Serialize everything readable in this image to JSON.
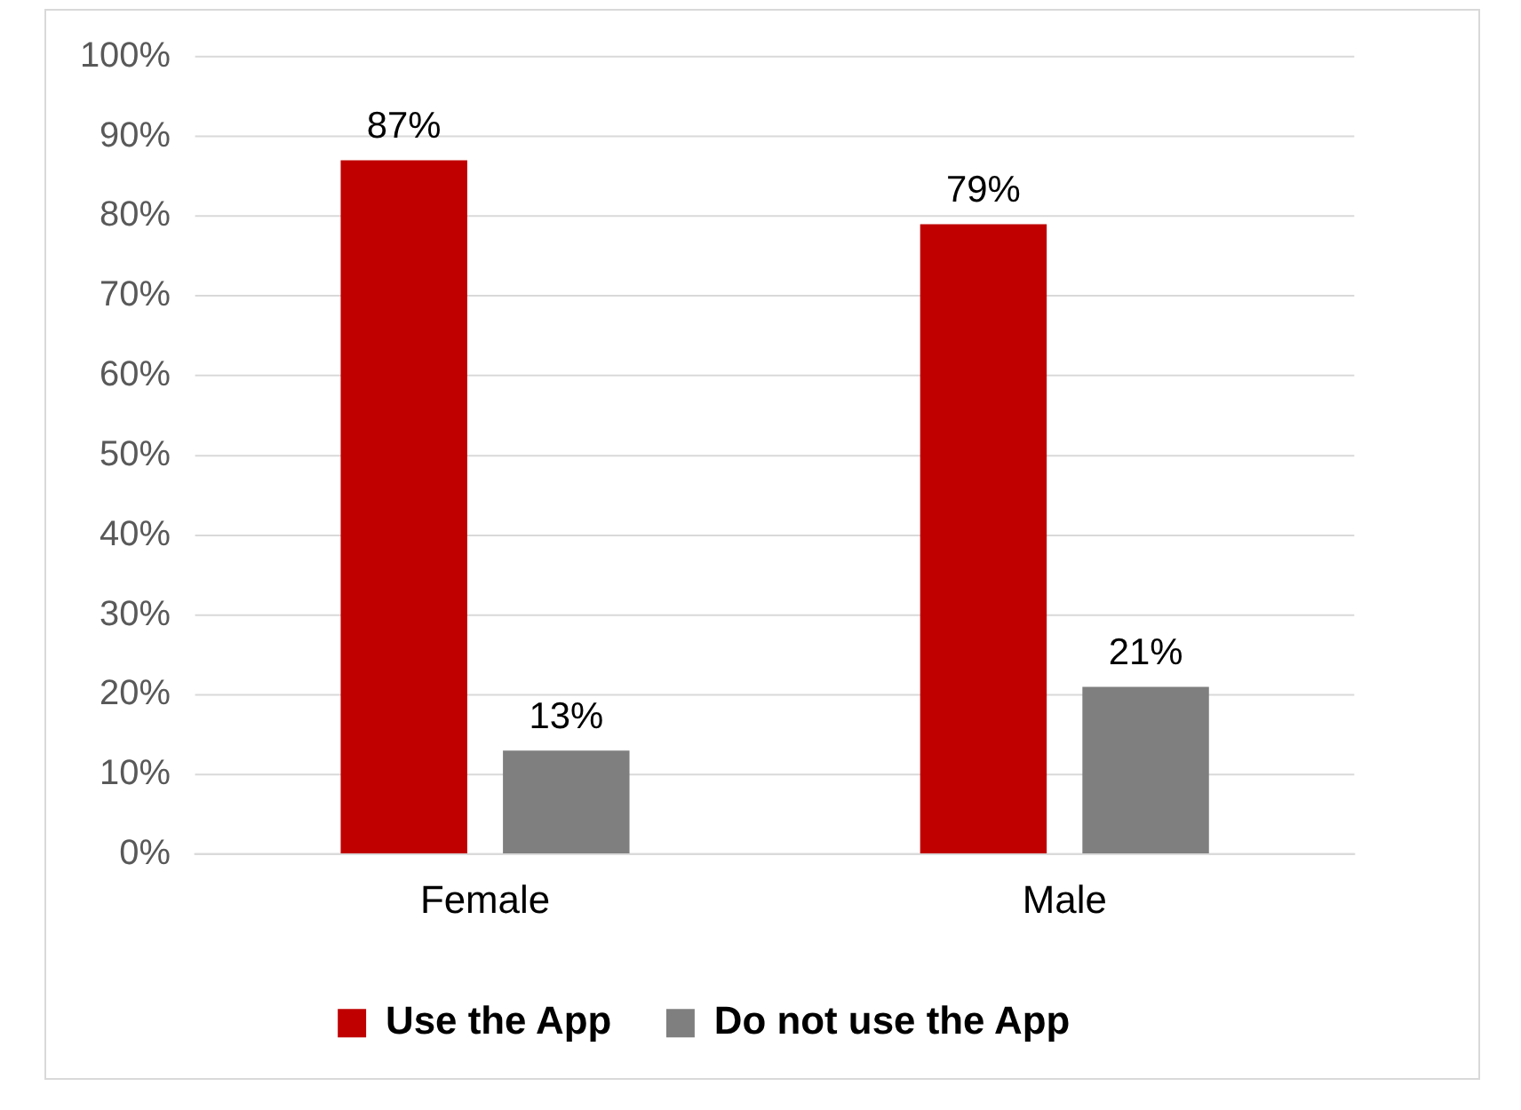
{
  "chart_data": {
    "type": "bar",
    "categories": [
      "Female",
      "Male"
    ],
    "series": [
      {
        "name": "Use the App",
        "color": "#c00000",
        "values": [
          87,
          79
        ],
        "value_labels": [
          "87%",
          "79%"
        ]
      },
      {
        "name": "Do not use the App",
        "color": "#7f7f7f",
        "values": [
          13,
          21
        ],
        "value_labels": [
          "13%",
          "21%"
        ]
      }
    ],
    "ylim": [
      0,
      100
    ],
    "yticks": [
      {
        "value": 0,
        "label": "0%"
      },
      {
        "value": 10,
        "label": "10%"
      },
      {
        "value": 20,
        "label": "20%"
      },
      {
        "value": 30,
        "label": "30%"
      },
      {
        "value": 40,
        "label": "40%"
      },
      {
        "value": 50,
        "label": "50%"
      },
      {
        "value": 60,
        "label": "60%"
      },
      {
        "value": 70,
        "label": "70%"
      },
      {
        "value": 80,
        "label": "80%"
      },
      {
        "value": 90,
        "label": "90%"
      },
      {
        "value": 100,
        "label": "100%"
      }
    ],
    "grid": "y",
    "legend": "bottom"
  }
}
